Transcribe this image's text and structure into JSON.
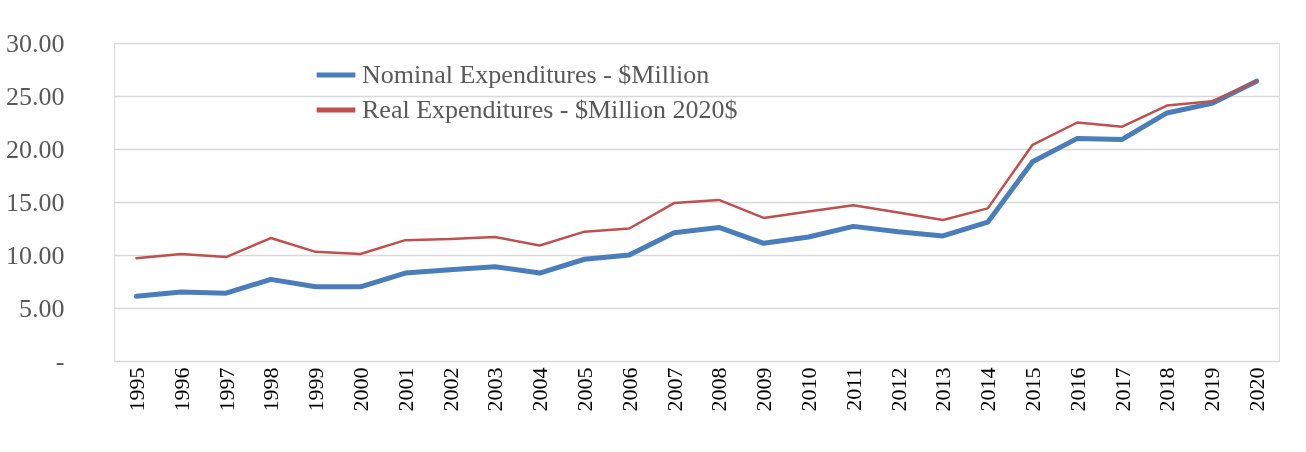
{
  "chart_data": {
    "type": "line",
    "categories": [
      "1995",
      "1996",
      "1997",
      "1998",
      "1999",
      "2000",
      "2001",
      "2002",
      "2003",
      "2004",
      "2005",
      "2006",
      "2007",
      "2008",
      "2009",
      "2010",
      "2011",
      "2012",
      "2013",
      "2014",
      "2015",
      "2016",
      "2017",
      "2018",
      "2019",
      "2020"
    ],
    "series": [
      {
        "name": "Nominal Expenditures - $Million",
        "color": "#4a7ebb",
        "values": [
          6.1,
          6.5,
          6.4,
          7.7,
          7.0,
          7.0,
          8.3,
          8.6,
          8.9,
          8.3,
          9.6,
          10.0,
          12.1,
          12.6,
          11.1,
          11.7,
          12.7,
          12.2,
          11.8,
          13.1,
          18.8,
          21.0,
          20.9,
          23.4,
          24.3,
          26.4
        ]
      },
      {
        "name": "Real Expenditures - $Million  2020$",
        "color": "#c0504d",
        "values": [
          9.7,
          10.1,
          9.8,
          11.6,
          10.3,
          10.1,
          11.4,
          11.5,
          11.7,
          10.9,
          12.2,
          12.5,
          14.9,
          15.2,
          13.5,
          14.1,
          14.7,
          14.0,
          13.3,
          14.4,
          20.4,
          22.5,
          22.1,
          24.1,
          24.5,
          26.4
        ]
      }
    ],
    "ylim": [
      0,
      30
    ],
    "yticks": [
      {
        "value": 0,
        "label": "-"
      },
      {
        "value": 5,
        "label": "5.00"
      },
      {
        "value": 10,
        "label": "10.00"
      },
      {
        "value": 15,
        "label": "15.00"
      },
      {
        "value": 20,
        "label": "20.00"
      },
      {
        "value": 25,
        "label": "25.00"
      },
      {
        "value": 30,
        "label": "30.00"
      }
    ],
    "grid": "y",
    "legend": "top",
    "marker": "none",
    "line_style": "solid"
  }
}
